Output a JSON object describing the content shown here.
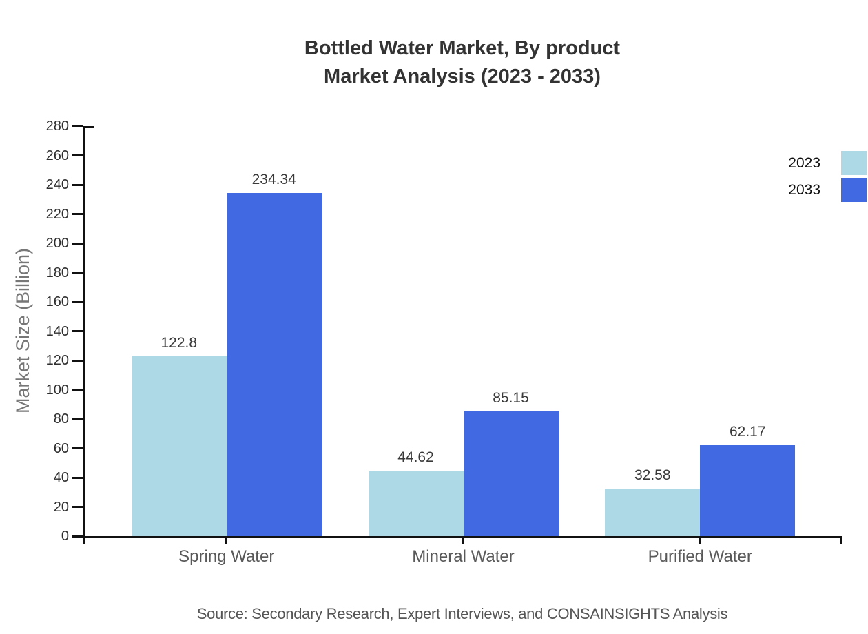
{
  "title": {
    "line1": "Bottled Water Market, By product",
    "line2": "Market Analysis (2023 - 2033)"
  },
  "source": "Source: Secondary Research, Expert Interviews, and CONSAINSIGHTS Analysis",
  "chart_data": {
    "type": "bar",
    "title": "Bottled Water Market, By product — Market Analysis (2023 - 2033)",
    "categories": [
      "Spring Water",
      "Mineral Water",
      "Purified Water"
    ],
    "series": [
      {
        "name": "2023",
        "color": "#ADD8E6",
        "values": [
          122.8,
          44.62,
          32.58
        ]
      },
      {
        "name": "2033",
        "color": "#4169E1",
        "values": [
          234.34,
          85.15,
          62.17
        ]
      }
    ],
    "xlabel": "",
    "ylabel": "Market Size (Billion)",
    "ylim": [
      0,
      280
    ],
    "ytick_step": 20,
    "grid": false,
    "legend_position": "top-right",
    "value_labels": true,
    "axis_color": "#111111"
  }
}
